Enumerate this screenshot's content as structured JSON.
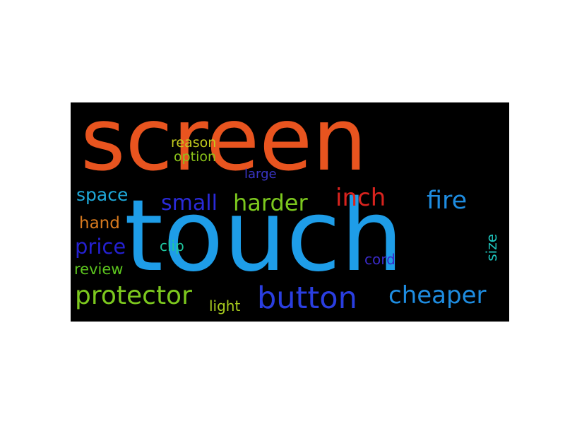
{
  "word_cloud": {
    "background": "#000000",
    "words": [
      {
        "text": "screen",
        "color": "#e8541f"
      },
      {
        "text": "touch",
        "color": "#1e9de8"
      },
      {
        "text": "reason",
        "color": "#c4cc1e"
      },
      {
        "text": "option",
        "color": "#8cc41a"
      },
      {
        "text": "large",
        "color": "#3a36c8"
      },
      {
        "text": "space",
        "color": "#1ea8d8"
      },
      {
        "text": "small",
        "color": "#2a2ad8"
      },
      {
        "text": "harder",
        "color": "#7cc81e"
      },
      {
        "text": "inch",
        "color": "#d8231e"
      },
      {
        "text": "fire",
        "color": "#1e8ce0"
      },
      {
        "text": "hand",
        "color": "#d87a1e"
      },
      {
        "text": "price",
        "color": "#2420d0"
      },
      {
        "text": "clip",
        "color": "#1ec8a0"
      },
      {
        "text": "size",
        "color": "#1ec8c0"
      },
      {
        "text": "review",
        "color": "#5cc41e"
      },
      {
        "text": "cord",
        "color": "#3a2ac8"
      },
      {
        "text": "protector",
        "color": "#7cc81e"
      },
      {
        "text": "light",
        "color": "#a8cc1e"
      },
      {
        "text": "button",
        "color": "#2a3ee0"
      },
      {
        "text": "cheaper",
        "color": "#1e8ce0"
      }
    ]
  }
}
